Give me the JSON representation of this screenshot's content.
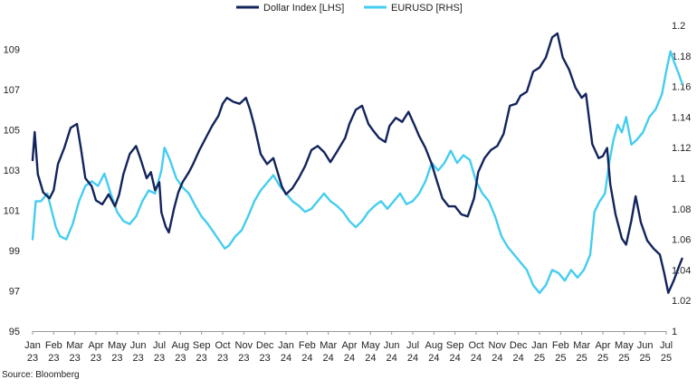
{
  "source": "Source: Bloomberg",
  "colors": {
    "dollar_index": "#13245c",
    "eurusd": "#45cdf0",
    "axis": "#999999"
  },
  "chart_data": {
    "type": "line",
    "x_categories": [
      [
        "Jan",
        "23"
      ],
      [
        "Feb",
        "23"
      ],
      [
        "Mar",
        "23"
      ],
      [
        "Apr",
        "23"
      ],
      [
        "May",
        "23"
      ],
      [
        "Jun",
        "23"
      ],
      [
        "Jul",
        "23"
      ],
      [
        "Aug",
        "23"
      ],
      [
        "Sep",
        "23"
      ],
      [
        "Oct",
        "23"
      ],
      [
        "Nov",
        "23"
      ],
      [
        "Dec",
        "23"
      ],
      [
        "Jan",
        "24"
      ],
      [
        "Feb",
        "24"
      ],
      [
        "Mar",
        "24"
      ],
      [
        "Apr",
        "24"
      ],
      [
        "May",
        "24"
      ],
      [
        "Jun",
        "24"
      ],
      [
        "Jul",
        "24"
      ],
      [
        "Aug",
        "24"
      ],
      [
        "Sep",
        "24"
      ],
      [
        "Oct",
        "24"
      ],
      [
        "Nov",
        "24"
      ],
      [
        "Dec",
        "24"
      ],
      [
        "Jan",
        "25"
      ],
      [
        "Feb",
        "25"
      ],
      [
        "Mar",
        "25"
      ],
      [
        "Apr",
        "25"
      ],
      [
        "May",
        "25"
      ],
      [
        "Jun",
        "25"
      ],
      [
        "Jul",
        "25"
      ]
    ],
    "y_left": {
      "ticks": [
        "95",
        "97",
        "99",
        "101",
        "103",
        "105",
        "107",
        "109"
      ],
      "range": [
        95,
        110.2
      ]
    },
    "y_right": {
      "ticks": [
        "1",
        "1.02",
        "1.04",
        "1.06",
        "1.08",
        "1.1",
        "1.12",
        "1.14",
        "1.16",
        "1.18",
        "1.2"
      ],
      "range": [
        1.0,
        1.2
      ]
    },
    "legend": {
      "placement": "top-center"
    },
    "series": [
      {
        "name": "Dollar Index [LHS]",
        "axis": "left",
        "values": [
          [
            0.0,
            103.5
          ],
          [
            0.1,
            104.9
          ],
          [
            0.25,
            102.8
          ],
          [
            0.5,
            101.9
          ],
          [
            0.8,
            101.6
          ],
          [
            1.0,
            102.0
          ],
          [
            1.2,
            103.3
          ],
          [
            1.5,
            104.1
          ],
          [
            1.8,
            105.1
          ],
          [
            2.1,
            105.3
          ],
          [
            2.3,
            104.0
          ],
          [
            2.5,
            102.6
          ],
          [
            2.8,
            102.2
          ],
          [
            3.0,
            101.5
          ],
          [
            3.3,
            101.3
          ],
          [
            3.6,
            101.8
          ],
          [
            3.9,
            101.2
          ],
          [
            4.1,
            101.8
          ],
          [
            4.3,
            102.8
          ],
          [
            4.6,
            103.8
          ],
          [
            4.9,
            104.2
          ],
          [
            5.1,
            103.6
          ],
          [
            5.4,
            102.6
          ],
          [
            5.6,
            102.9
          ],
          [
            5.8,
            102.0
          ],
          [
            6.0,
            102.4
          ],
          [
            6.1,
            100.9
          ],
          [
            6.3,
            100.2
          ],
          [
            6.45,
            99.9
          ],
          [
            6.7,
            101.1
          ],
          [
            6.9,
            101.9
          ],
          [
            7.1,
            102.4
          ],
          [
            7.4,
            102.9
          ],
          [
            7.6,
            103.3
          ],
          [
            7.9,
            104.0
          ],
          [
            8.2,
            104.6
          ],
          [
            8.5,
            105.2
          ],
          [
            8.8,
            105.7
          ],
          [
            9.0,
            106.3
          ],
          [
            9.2,
            106.6
          ],
          [
            9.5,
            106.4
          ],
          [
            9.8,
            106.3
          ],
          [
            10.1,
            106.6
          ],
          [
            10.3,
            106.0
          ],
          [
            10.5,
            105.2
          ],
          [
            10.8,
            103.8
          ],
          [
            11.1,
            103.3
          ],
          [
            11.4,
            103.6
          ],
          [
            11.8,
            102.2
          ],
          [
            12.0,
            101.8
          ],
          [
            12.3,
            102.1
          ],
          [
            12.6,
            102.6
          ],
          [
            12.9,
            103.2
          ],
          [
            13.2,
            104.0
          ],
          [
            13.5,
            104.2
          ],
          [
            13.8,
            103.9
          ],
          [
            14.1,
            103.4
          ],
          [
            14.4,
            103.9
          ],
          [
            14.8,
            104.6
          ],
          [
            15.0,
            105.3
          ],
          [
            15.3,
            106.0
          ],
          [
            15.6,
            106.2
          ],
          [
            15.9,
            105.3
          ],
          [
            16.1,
            105.0
          ],
          [
            16.4,
            104.6
          ],
          [
            16.7,
            104.4
          ],
          [
            16.9,
            105.2
          ],
          [
            17.2,
            105.6
          ],
          [
            17.5,
            105.4
          ],
          [
            17.8,
            105.9
          ],
          [
            18.1,
            105.2
          ],
          [
            18.3,
            104.7
          ],
          [
            18.6,
            104.1
          ],
          [
            18.9,
            103.3
          ],
          [
            19.1,
            102.6
          ],
          [
            19.4,
            101.6
          ],
          [
            19.7,
            101.2
          ],
          [
            20.0,
            101.2
          ],
          [
            20.3,
            100.8
          ],
          [
            20.6,
            100.7
          ],
          [
            20.9,
            101.6
          ],
          [
            21.1,
            102.9
          ],
          [
            21.4,
            103.6
          ],
          [
            21.7,
            104.0
          ],
          [
            22.0,
            104.2
          ],
          [
            22.3,
            104.8
          ],
          [
            22.6,
            106.2
          ],
          [
            22.9,
            106.3
          ],
          [
            23.1,
            106.7
          ],
          [
            23.4,
            106.9
          ],
          [
            23.7,
            107.9
          ],
          [
            24.0,
            108.1
          ],
          [
            24.3,
            108.6
          ],
          [
            24.6,
            109.6
          ],
          [
            24.85,
            109.8
          ],
          [
            25.1,
            108.6
          ],
          [
            25.4,
            108.0
          ],
          [
            25.7,
            107.1
          ],
          [
            26.0,
            106.6
          ],
          [
            26.2,
            106.8
          ],
          [
            26.5,
            104.3
          ],
          [
            26.8,
            103.6
          ],
          [
            27.0,
            103.7
          ],
          [
            27.2,
            104.1
          ],
          [
            27.35,
            102.3
          ],
          [
            27.6,
            100.8
          ],
          [
            27.9,
            99.6
          ],
          [
            28.1,
            99.3
          ],
          [
            28.35,
            100.5
          ],
          [
            28.55,
            101.7
          ],
          [
            28.8,
            100.4
          ],
          [
            29.1,
            99.5
          ],
          [
            29.4,
            99.1
          ],
          [
            29.7,
            98.8
          ],
          [
            29.9,
            97.9
          ],
          [
            30.1,
            96.9
          ],
          [
            30.35,
            97.5
          ],
          [
            30.6,
            98.2
          ],
          [
            30.75,
            98.6
          ]
        ]
      },
      {
        "name": "EURUSD [RHS]",
        "axis": "right",
        "values": [
          [
            0.0,
            1.06
          ],
          [
            0.15,
            1.085
          ],
          [
            0.4,
            1.085
          ],
          [
            0.7,
            1.09
          ],
          [
            0.9,
            1.079
          ],
          [
            1.1,
            1.068
          ],
          [
            1.3,
            1.062
          ],
          [
            1.6,
            1.06
          ],
          [
            1.9,
            1.07
          ],
          [
            2.2,
            1.085
          ],
          [
            2.5,
            1.095
          ],
          [
            2.8,
            1.098
          ],
          [
            3.1,
            1.095
          ],
          [
            3.4,
            1.103
          ],
          [
            3.7,
            1.09
          ],
          [
            4.0,
            1.078
          ],
          [
            4.3,
            1.072
          ],
          [
            4.6,
            1.07
          ],
          [
            4.9,
            1.075
          ],
          [
            5.2,
            1.085
          ],
          [
            5.5,
            1.092
          ],
          [
            5.8,
            1.09
          ],
          [
            6.1,
            1.105
          ],
          [
            6.25,
            1.12
          ],
          [
            6.5,
            1.112
          ],
          [
            6.8,
            1.1
          ],
          [
            7.1,
            1.094
          ],
          [
            7.4,
            1.09
          ],
          [
            7.7,
            1.082
          ],
          [
            8.0,
            1.075
          ],
          [
            8.3,
            1.07
          ],
          [
            8.6,
            1.064
          ],
          [
            8.9,
            1.058
          ],
          [
            9.1,
            1.054
          ],
          [
            9.3,
            1.056
          ],
          [
            9.6,
            1.062
          ],
          [
            9.9,
            1.066
          ],
          [
            10.2,
            1.075
          ],
          [
            10.5,
            1.085
          ],
          [
            10.8,
            1.092
          ],
          [
            11.1,
            1.097
          ],
          [
            11.4,
            1.102
          ],
          [
            11.7,
            1.095
          ],
          [
            12.0,
            1.09
          ],
          [
            12.3,
            1.085
          ],
          [
            12.6,
            1.082
          ],
          [
            12.9,
            1.078
          ],
          [
            13.2,
            1.08
          ],
          [
            13.5,
            1.085
          ],
          [
            13.8,
            1.09
          ],
          [
            14.1,
            1.085
          ],
          [
            14.4,
            1.082
          ],
          [
            14.7,
            1.078
          ],
          [
            15.0,
            1.072
          ],
          [
            15.3,
            1.068
          ],
          [
            15.6,
            1.072
          ],
          [
            15.9,
            1.078
          ],
          [
            16.2,
            1.082
          ],
          [
            16.5,
            1.085
          ],
          [
            16.8,
            1.08
          ],
          [
            17.1,
            1.085
          ],
          [
            17.4,
            1.09
          ],
          [
            17.7,
            1.083
          ],
          [
            18.0,
            1.085
          ],
          [
            18.3,
            1.09
          ],
          [
            18.6,
            1.098
          ],
          [
            18.9,
            1.11
          ],
          [
            19.2,
            1.105
          ],
          [
            19.5,
            1.11
          ],
          [
            19.8,
            1.118
          ],
          [
            20.1,
            1.11
          ],
          [
            20.4,
            1.115
          ],
          [
            20.7,
            1.112
          ],
          [
            21.0,
            1.098
          ],
          [
            21.3,
            1.09
          ],
          [
            21.6,
            1.085
          ],
          [
            21.9,
            1.075
          ],
          [
            22.2,
            1.062
          ],
          [
            22.5,
            1.055
          ],
          [
            22.8,
            1.05
          ],
          [
            23.1,
            1.045
          ],
          [
            23.4,
            1.04
          ],
          [
            23.7,
            1.03
          ],
          [
            24.0,
            1.025
          ],
          [
            24.3,
            1.03
          ],
          [
            24.6,
            1.04
          ],
          [
            24.9,
            1.038
          ],
          [
            25.2,
            1.033
          ],
          [
            25.5,
            1.04
          ],
          [
            25.8,
            1.035
          ],
          [
            26.1,
            1.04
          ],
          [
            26.4,
            1.05
          ],
          [
            26.6,
            1.078
          ],
          [
            26.85,
            1.085
          ],
          [
            27.1,
            1.09
          ],
          [
            27.3,
            1.11
          ],
          [
            27.5,
            1.125
          ],
          [
            27.7,
            1.135
          ],
          [
            27.9,
            1.13
          ],
          [
            28.1,
            1.14
          ],
          [
            28.35,
            1.122
          ],
          [
            28.6,
            1.125
          ],
          [
            28.9,
            1.13
          ],
          [
            29.2,
            1.14
          ],
          [
            29.5,
            1.145
          ],
          [
            29.8,
            1.155
          ],
          [
            30.0,
            1.17
          ],
          [
            30.2,
            1.183
          ],
          [
            30.4,
            1.175
          ],
          [
            30.6,
            1.168
          ],
          [
            30.75,
            1.162
          ]
        ]
      }
    ]
  }
}
